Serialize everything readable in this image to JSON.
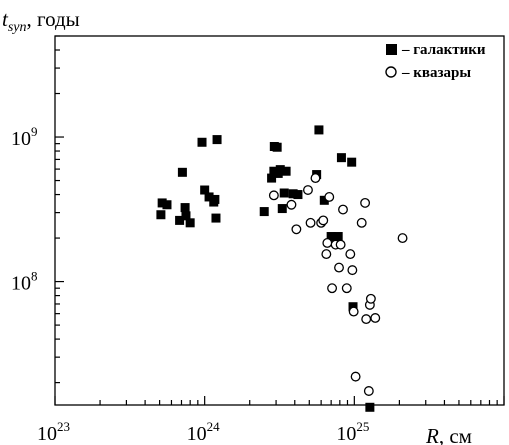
{
  "chart_data": {
    "type": "scatter",
    "x_scale": "log",
    "y_scale": "log",
    "xlim": [
      1e+23,
      1e+26
    ],
    "ylim": [
      14000000.0,
      5000000000.0
    ],
    "x_ticks": [
      {
        "base": "10",
        "exp": "23",
        "value": 1e+23
      },
      {
        "base": "10",
        "exp": "24",
        "value": 1e+24
      },
      {
        "base": "10",
        "exp": "25",
        "value": 1e+25
      }
    ],
    "y_ticks": [
      {
        "base": "10",
        "exp": "8",
        "value": 100000000.0
      },
      {
        "base": "10",
        "exp": "9",
        "value": 1000000000.0
      }
    ],
    "xlabel": {
      "var": "R",
      "unit": ", см"
    },
    "ylabel": {
      "var": "t",
      "sub": "syn",
      "unit": ", годы"
    },
    "legend_position": "top-right",
    "series": [
      {
        "name": "– галактики",
        "marker": "filled-square",
        "color": "#000000",
        "points": [
          [
            5.1e+23,
            290000000.0
          ],
          [
            5.2e+23,
            350000000.0
          ],
          [
            5.6e+23,
            340000000.0
          ],
          [
            6.8e+23,
            265000000.0
          ],
          [
            7.1e+23,
            570000000.0
          ],
          [
            7.4e+23,
            325000000.0
          ],
          [
            7.5e+23,
            285000000.0
          ],
          [
            8e+23,
            255000000.0
          ],
          [
            9.6e+23,
            920000000.0
          ],
          [
            1e+24,
            430000000.0
          ],
          [
            1.07e+24,
            385000000.0
          ],
          [
            1.15e+24,
            355000000.0
          ],
          [
            1.17e+24,
            370000000.0
          ],
          [
            1.19e+24,
            275000000.0
          ],
          [
            1.21e+24,
            960000000.0
          ],
          [
            2.5e+24,
            305000000.0
          ],
          [
            2.8e+24,
            520000000.0
          ],
          [
            2.9e+24,
            580000000.0
          ],
          [
            2.92e+24,
            860000000.0
          ],
          [
            3.05e+24,
            850000000.0
          ],
          [
            3.1e+24,
            560000000.0
          ],
          [
            3.2e+24,
            595000000.0
          ],
          [
            3.3e+24,
            320000000.0
          ],
          [
            3.4e+24,
            410000000.0
          ],
          [
            3.5e+24,
            580000000.0
          ],
          [
            3.9e+24,
            405000000.0
          ],
          [
            4.2e+24,
            400000000.0
          ],
          [
            5.6e+24,
            550000000.0
          ],
          [
            5.8e+24,
            1120000000.0
          ],
          [
            6.3e+24,
            365000000.0
          ],
          [
            7e+24,
            205000000.0
          ],
          [
            7.8e+24,
            205000000.0
          ],
          [
            8.2e+24,
            720000000.0
          ],
          [
            9.6e+24,
            670000000.0
          ],
          [
            9.8e+24,
            67000000.0
          ],
          [
            1.27e+25,
            13500000.0
          ]
        ]
      },
      {
        "name": "– квазары",
        "marker": "open-circle",
        "color": "#000000",
        "points": [
          [
            2.9e+24,
            395000000.0
          ],
          [
            3.8e+24,
            340000000.0
          ],
          [
            4.1e+24,
            230000000.0
          ],
          [
            4.9e+24,
            430000000.0
          ],
          [
            5.1e+24,
            255000000.0
          ],
          [
            5.5e+24,
            520000000.0
          ],
          [
            6e+24,
            255000000.0
          ],
          [
            6.2e+24,
            265000000.0
          ],
          [
            6.5e+24,
            155000000.0
          ],
          [
            6.6e+24,
            185000000.0
          ],
          [
            6.8e+24,
            385000000.0
          ],
          [
            7.1e+24,
            90000000.0
          ],
          [
            7.5e+24,
            180000000.0
          ],
          [
            7.9e+24,
            125000000.0
          ],
          [
            8.1e+24,
            180000000.0
          ],
          [
            8.4e+24,
            315000000.0
          ],
          [
            8.9e+24,
            90000000.0
          ],
          [
            9.4e+24,
            155000000.0
          ],
          [
            9.7e+24,
            120000000.0
          ],
          [
            9.9e+24,
            62000000.0
          ],
          [
            1.02e+25,
            22000000.0
          ],
          [
            1.12e+25,
            255000000.0
          ],
          [
            1.18e+25,
            350000000.0
          ],
          [
            1.2e+25,
            55000000.0
          ],
          [
            1.25e+25,
            17500000.0
          ],
          [
            1.27e+25,
            69000000.0
          ],
          [
            1.29e+25,
            76000000.0
          ],
          [
            1.38e+25,
            56000000.0
          ],
          [
            2.1e+25,
            200000000.0
          ]
        ]
      }
    ]
  }
}
